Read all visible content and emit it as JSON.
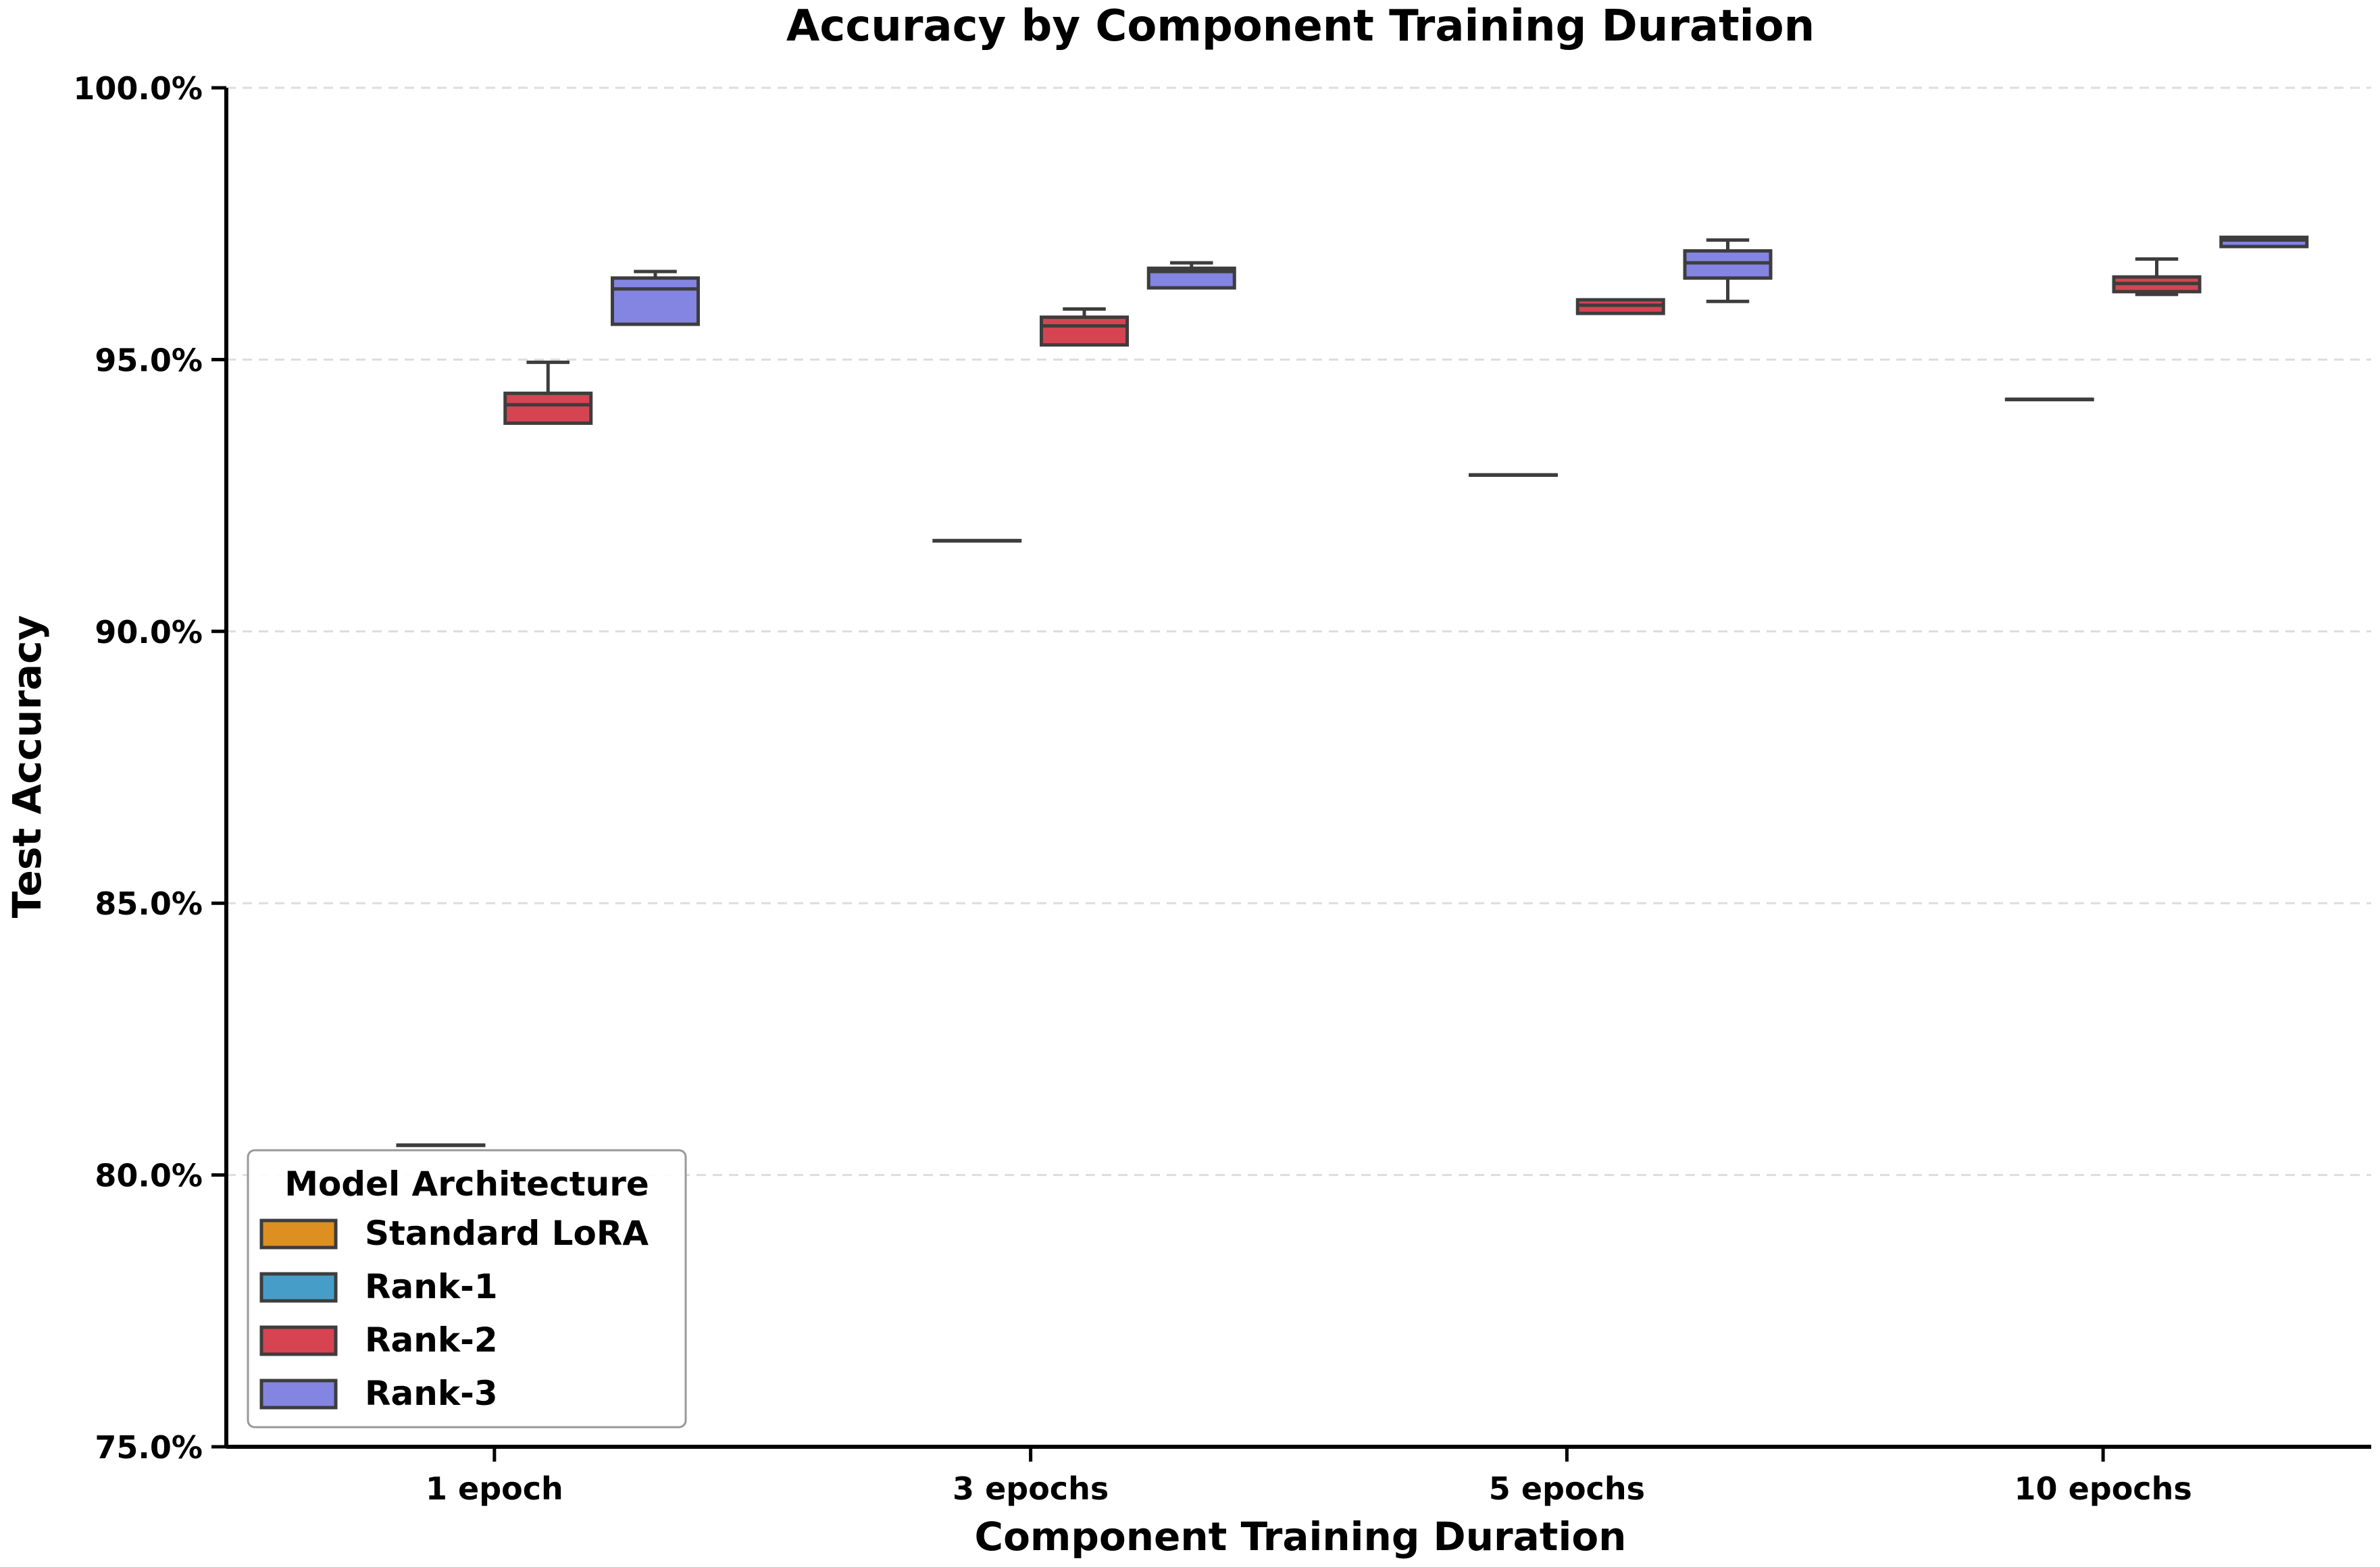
{
  "chart_data": {
    "type": "box",
    "title": "Accuracy by Component Training Duration",
    "xlabel": "Component Training Duration",
    "ylabel": "Test Accuracy",
    "categories": [
      "1 epoch",
      "3 epochs",
      "5 epochs",
      "10 epochs"
    ],
    "ylim": [
      75,
      100
    ],
    "yticks": [
      {
        "value": 75,
        "label": "75.0%"
      },
      {
        "value": 80,
        "label": "80.0%"
      },
      {
        "value": 85,
        "label": "85.0%"
      },
      {
        "value": 90,
        "label": "90.0%"
      },
      {
        "value": 95,
        "label": "95.0%"
      },
      {
        "value": 100,
        "label": "100.0%"
      }
    ],
    "grid": "horizontal dashed",
    "legend": {
      "title": "Model Architecture",
      "position": "lower-left"
    },
    "series": [
      {
        "name": "Standard LoRA",
        "color": "#de8f22",
        "boxes": [
          null,
          null,
          null,
          null
        ]
      },
      {
        "name": "Rank-1",
        "color": "#469ec8",
        "boxes": [
          {
            "min": 80.55,
            "q1": 80.55,
            "median": 80.55,
            "q3": 80.55,
            "max": 80.55
          },
          {
            "min": 91.67,
            "q1": 91.67,
            "median": 91.67,
            "q3": 91.67,
            "max": 91.67
          },
          {
            "min": 92.88,
            "q1": 92.88,
            "median": 92.88,
            "q3": 92.88,
            "max": 92.88
          },
          {
            "min": 94.27,
            "q1": 94.27,
            "median": 94.27,
            "q3": 94.27,
            "max": 94.27
          }
        ]
      },
      {
        "name": "Rank-2",
        "color": "#d64452",
        "boxes": [
          {
            "min": 93.83,
            "q1": 93.83,
            "median": 94.17,
            "q3": 94.38,
            "max": 94.95
          },
          {
            "min": 95.27,
            "q1": 95.27,
            "median": 95.62,
            "q3": 95.78,
            "max": 95.93
          },
          {
            "min": 95.85,
            "q1": 95.85,
            "median": 96.0,
            "q3": 96.1,
            "max": 96.1
          },
          {
            "min": 96.2,
            "q1": 96.25,
            "median": 96.4,
            "q3": 96.52,
            "max": 96.85
          }
        ]
      },
      {
        "name": "Rank-3",
        "color": "#8484e2",
        "boxes": [
          {
            "min": 95.65,
            "q1": 95.65,
            "median": 96.3,
            "q3": 96.5,
            "max": 96.62
          },
          {
            "min": 96.32,
            "q1": 96.32,
            "median": 96.62,
            "q3": 96.68,
            "max": 96.78
          },
          {
            "min": 96.07,
            "q1": 96.5,
            "median": 96.78,
            "q3": 97.0,
            "max": 97.2
          },
          {
            "min": 97.08,
            "q1": 97.08,
            "median": 97.2,
            "q3": 97.25,
            "max": 97.25
          }
        ]
      }
    ]
  }
}
